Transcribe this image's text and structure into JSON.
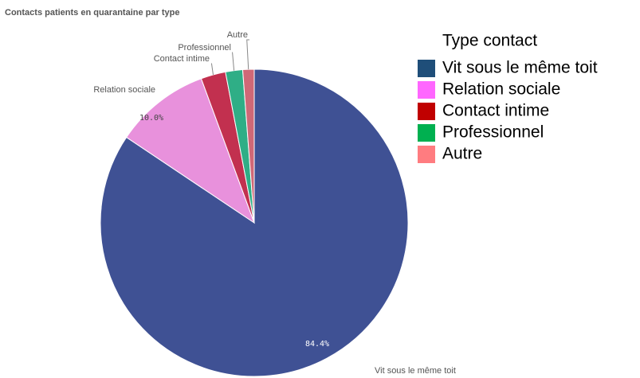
{
  "chart_data": {
    "type": "pie",
    "title": "Contacts patients en quarantaine par type",
    "categories": [
      "Vit sous le même toit",
      "Relation sociale",
      "Contact intime",
      "Professionnel",
      "Autre"
    ],
    "values": [
      84.4,
      10.0,
      2.6,
      1.8,
      1.2
    ],
    "value_labels": [
      "84.4%",
      "10.0%",
      null,
      null,
      null
    ],
    "colors": [
      "#3f5194",
      "#e891dc",
      "#c2304f",
      "#2fae86",
      "#d06877"
    ],
    "legend_title": "Type contact",
    "legend_colors": [
      "#1f4e79",
      "#ff66ff",
      "#c00000",
      "#00b050",
      "#ff7c80"
    ],
    "legend": "right"
  }
}
